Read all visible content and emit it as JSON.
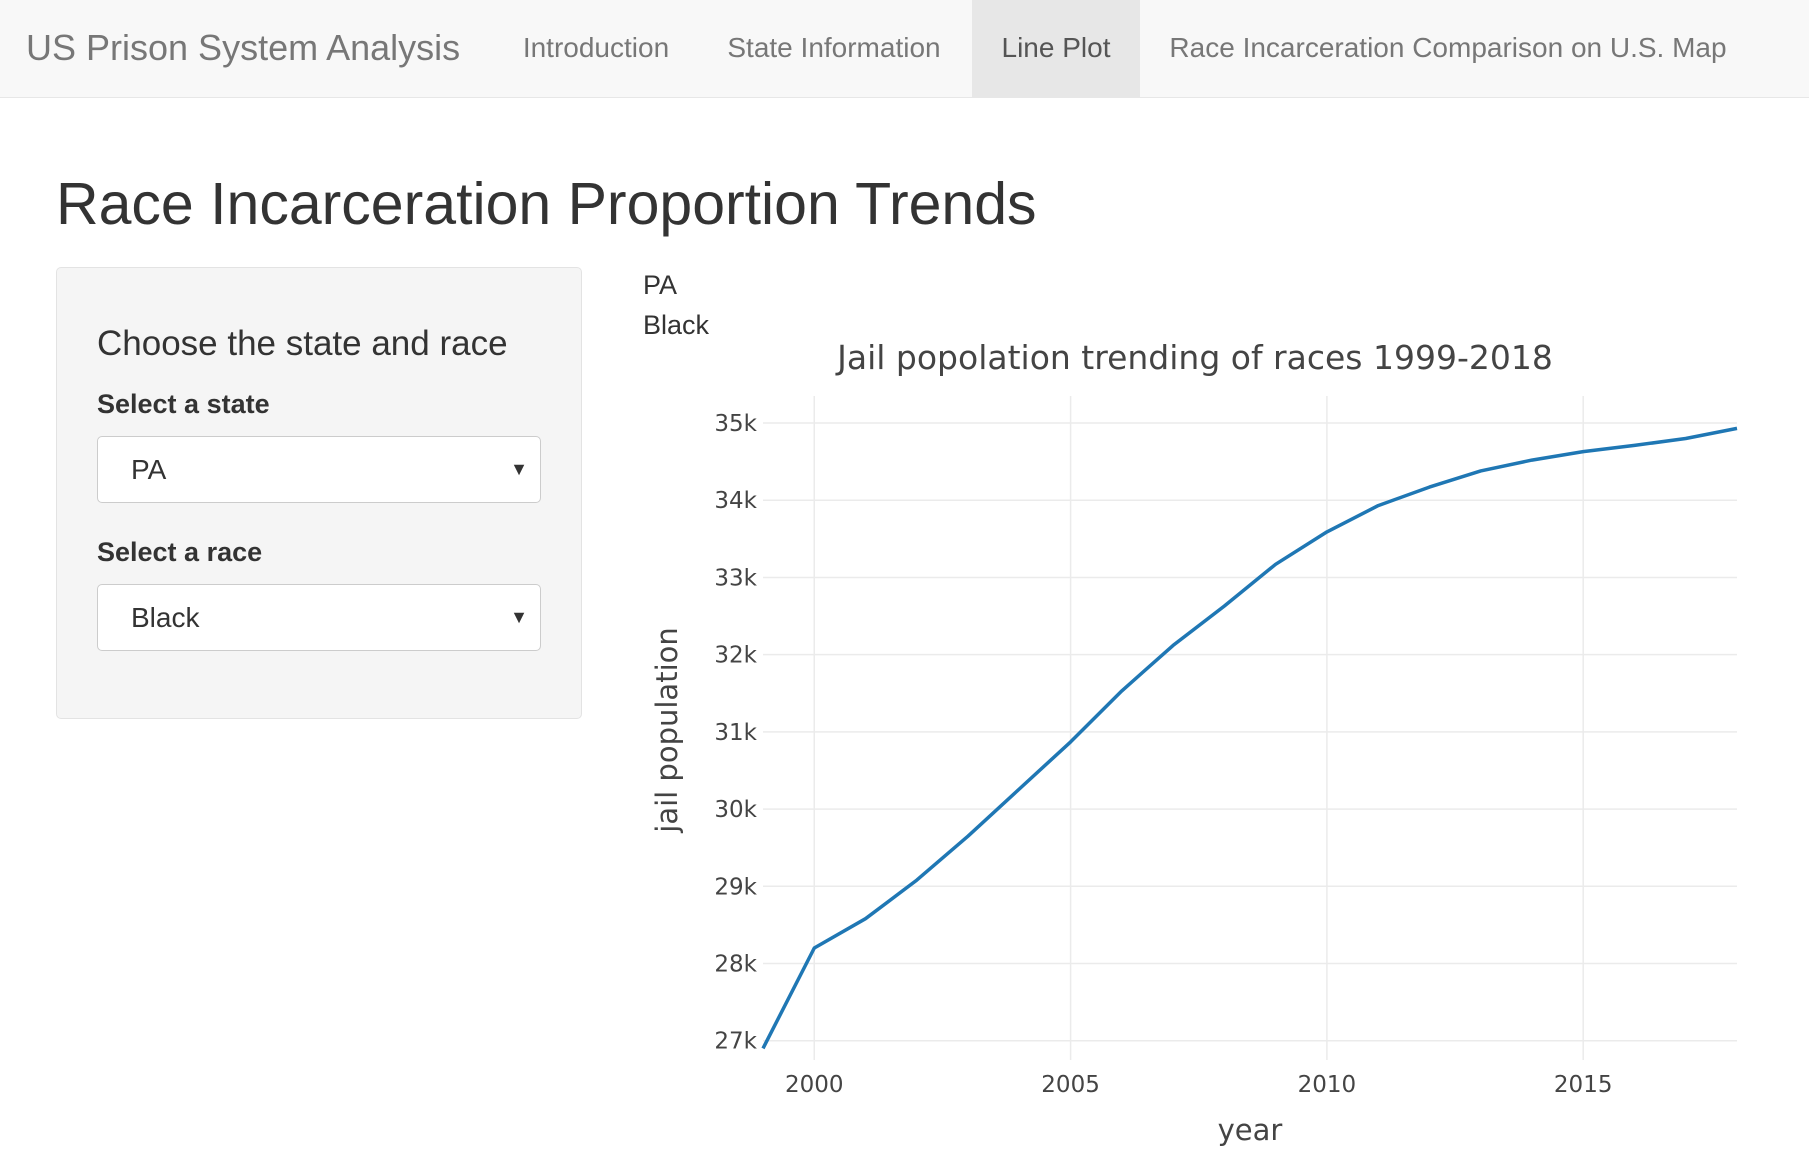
{
  "navbar": {
    "brand": "US Prison System Analysis",
    "tabs": [
      {
        "label": "Introduction",
        "active": false
      },
      {
        "label": "State Information",
        "active": false
      },
      {
        "label": "Line Plot",
        "active": true
      },
      {
        "label": "Race Incarceration Comparison on U.S. Map",
        "active": false
      }
    ]
  },
  "page": {
    "title": "Race Incarceration Proportion Trends"
  },
  "sidebar": {
    "heading": "Choose the state and race",
    "state_label": "Select a state",
    "state_value": "PA",
    "race_label": "Select a race",
    "race_value": "Black"
  },
  "output": {
    "state": "PA",
    "race": "Black"
  },
  "chart_data": {
    "type": "line",
    "title": "Jail popolation trending of races 1999-2018",
    "xlabel": "year",
    "ylabel": "jail population",
    "x_ticks": [
      2000,
      2005,
      2010,
      2015
    ],
    "y_ticks": [
      27000,
      28000,
      29000,
      30000,
      31000,
      32000,
      33000,
      34000,
      35000
    ],
    "y_tick_labels": [
      "27k",
      "28k",
      "29k",
      "30k",
      "31k",
      "32k",
      "33k",
      "34k",
      "35k"
    ],
    "xlim": [
      1999,
      2018
    ],
    "ylim": [
      26750,
      35350
    ],
    "grid": true,
    "color": "#1f77b4",
    "x": [
      1999,
      2000,
      2001,
      2002,
      2003,
      2004,
      2005,
      2006,
      2007,
      2008,
      2009,
      2010,
      2011,
      2012,
      2013,
      2014,
      2015,
      2016,
      2017,
      2018
    ],
    "y": [
      26900,
      28200,
      28580,
      29080,
      29650,
      30260,
      30870,
      31530,
      32120,
      32630,
      33170,
      33590,
      33930,
      34170,
      34380,
      34520,
      34630,
      34710,
      34800,
      34930
    ]
  }
}
